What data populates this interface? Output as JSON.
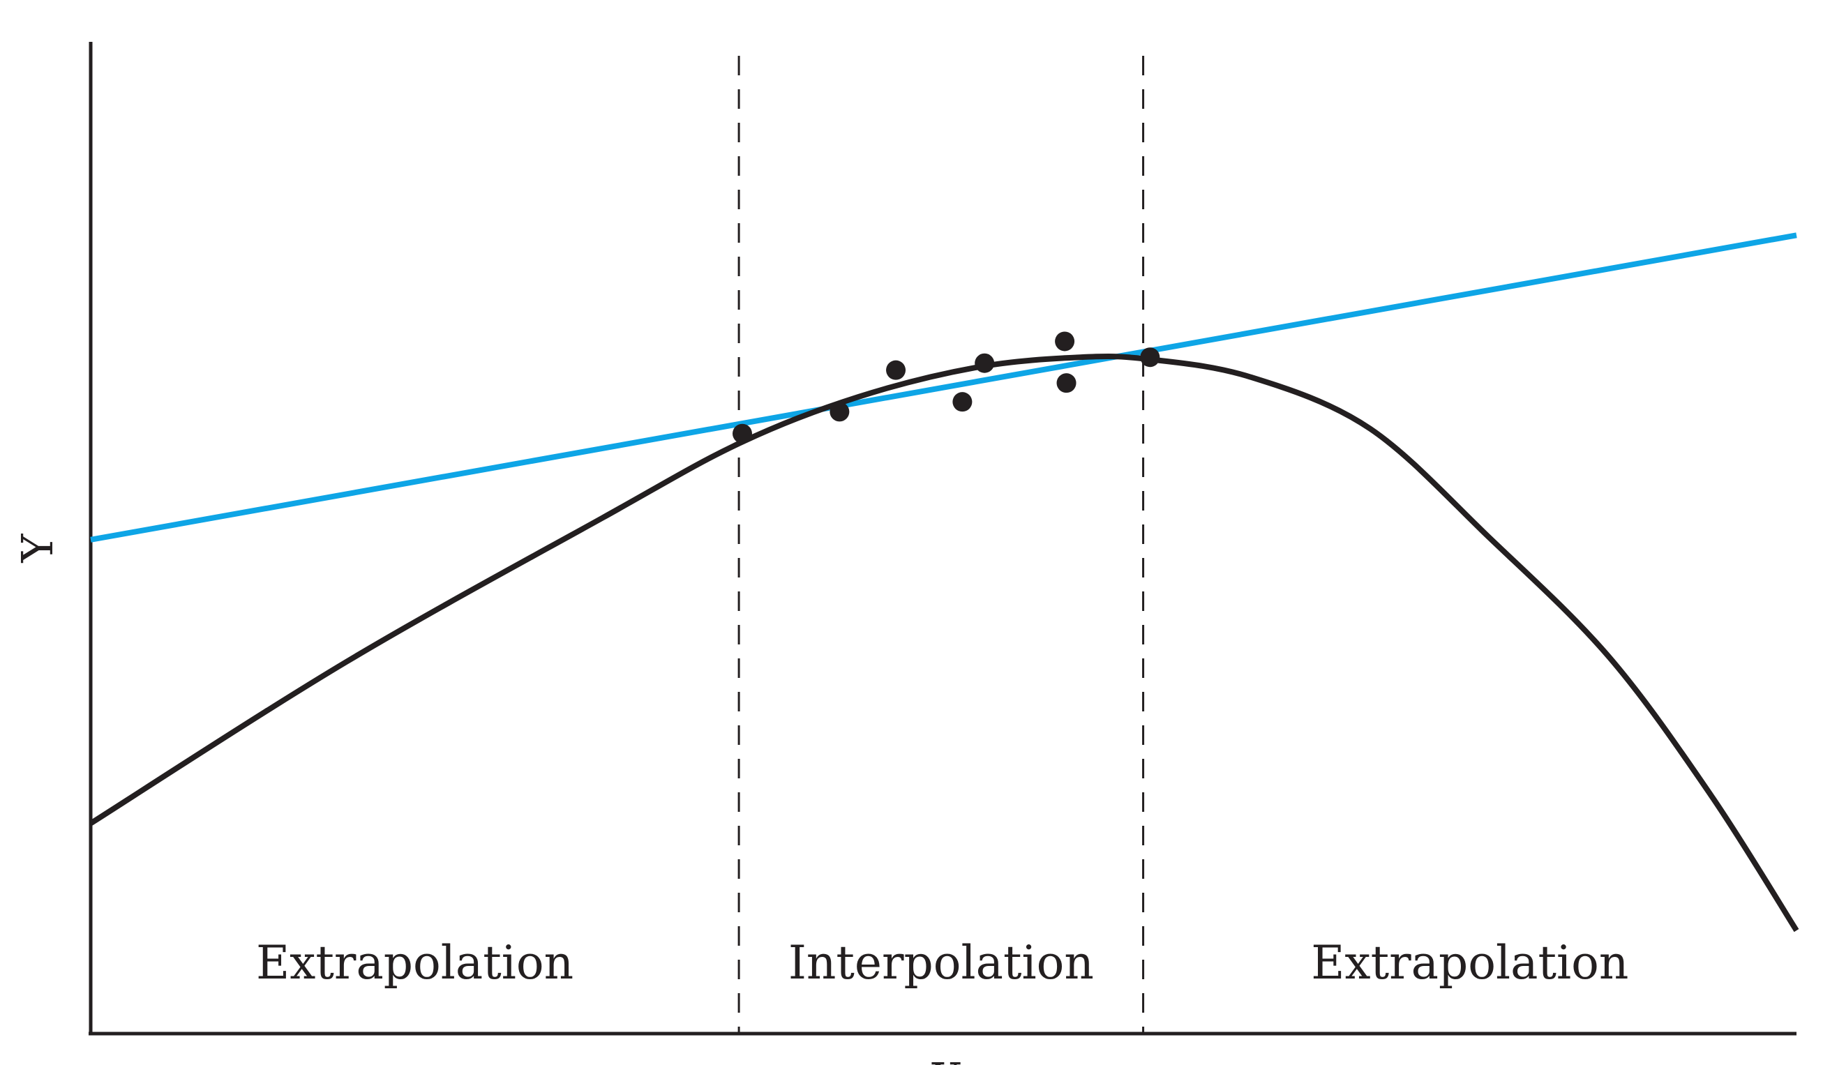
{
  "chart_data": {
    "type": "line",
    "title": "",
    "xlabel": "X",
    "ylabel": "Y",
    "xlim": [
      0,
      10
    ],
    "ylim": [
      0,
      10
    ],
    "grid": false,
    "regions": [
      {
        "label": "Extrapolation",
        "x_range": [
          0,
          3.8
        ]
      },
      {
        "label": "Interpolation",
        "x_range": [
          3.8,
          6.17
        ]
      },
      {
        "label": "Extrapolation",
        "x_range": [
          6.17,
          10
        ]
      }
    ],
    "dividers_x": [
      3.8,
      6.17
    ],
    "series": [
      {
        "kind": "scatter",
        "color": "#231f20",
        "x": [
          3.82,
          4.39,
          4.72,
          5.11,
          5.24,
          5.71,
          5.72,
          6.21
        ],
        "y": [
          6.05,
          6.27,
          6.69,
          6.37,
          6.76,
          6.98,
          6.56,
          6.82
        ]
      },
      {
        "kind": "linear-fit",
        "color": "#0ea5e6",
        "x": [
          0,
          10
        ],
        "y": [
          4.98,
          8.05
        ]
      },
      {
        "kind": "curve",
        "color": "#231f20",
        "x": [
          0,
          1.5,
          3.0,
          3.8,
          4.5,
          5.2,
          5.8,
          6.2,
          6.8,
          7.5,
          8.2,
          8.9,
          9.5,
          10.0
        ],
        "y": [
          2.12,
          3.75,
          5.2,
          5.95,
          6.42,
          6.72,
          6.82,
          6.8,
          6.62,
          6.1,
          5.0,
          3.8,
          2.4,
          1.04
        ]
      }
    ]
  }
}
